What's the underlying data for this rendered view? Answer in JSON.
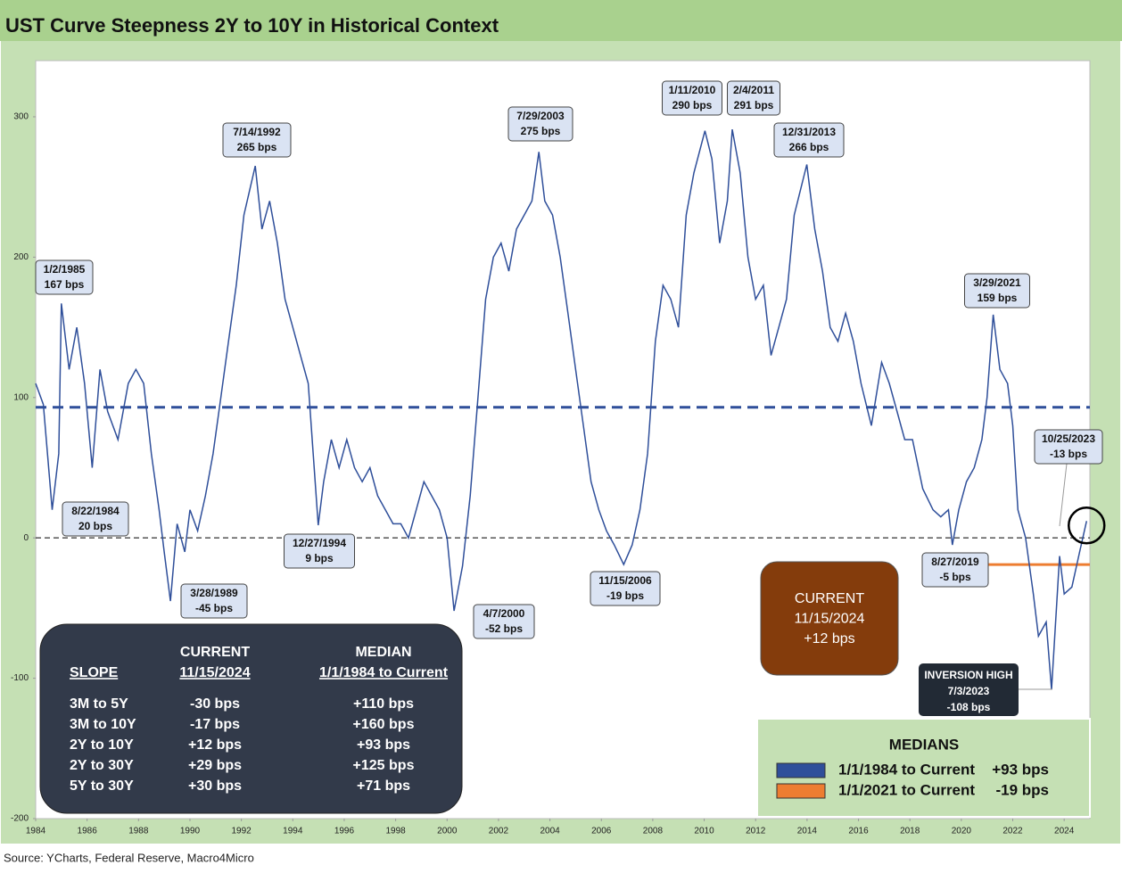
{
  "chart_data": {
    "type": "line",
    "title": "UST Curve Steepness 2Y to 10Y in Historical Context",
    "source": "Source: YCharts, Federal Reserve, Macro4Micro",
    "xlim": [
      1984,
      2025
    ],
    "xticks": [
      1984,
      1986,
      1988,
      1990,
      1992,
      1994,
      1996,
      1998,
      2000,
      2002,
      2004,
      2006,
      2008,
      2010,
      2012,
      2014,
      2016,
      2018,
      2020,
      2022,
      2024
    ],
    "ylim": [
      -200,
      340
    ],
    "yticks": [
      -200,
      -100,
      0,
      100,
      200,
      300
    ],
    "series": [
      {
        "color": "#2f4f9a",
        "x": [
          1984.0,
          1984.3,
          1984.64,
          1984.9,
          1985.0,
          1985.3,
          1985.6,
          1985.9,
          1986.2,
          1986.5,
          1986.8,
          1987.2,
          1987.6,
          1987.9,
          1988.2,
          1988.5,
          1988.8,
          1989.0,
          1989.24,
          1989.5,
          1989.8,
          1990.0,
          1990.3,
          1990.6,
          1990.9,
          1991.2,
          1991.5,
          1991.8,
          1992.1,
          1992.54,
          1992.8,
          1993.1,
          1993.4,
          1993.7,
          1994.0,
          1994.3,
          1994.6,
          1994.99,
          1995.2,
          1995.5,
          1995.8,
          1996.1,
          1996.4,
          1996.7,
          1997.0,
          1997.3,
          1997.6,
          1997.9,
          1998.2,
          1998.5,
          1998.8,
          1999.1,
          1999.4,
          1999.7,
          2000.0,
          2000.27,
          2000.6,
          2000.9,
          2001.2,
          2001.5,
          2001.8,
          2002.1,
          2002.4,
          2002.7,
          2003.0,
          2003.3,
          2003.57,
          2003.8,
          2004.1,
          2004.4,
          2004.7,
          2005.0,
          2005.3,
          2005.6,
          2005.9,
          2006.2,
          2006.5,
          2006.87,
          2007.2,
          2007.5,
          2007.8,
          2008.1,
          2008.4,
          2008.7,
          2009.0,
          2009.3,
          2009.6,
          2010.03,
          2010.3,
          2010.6,
          2010.9,
          2011.09,
          2011.4,
          2011.7,
          2012.0,
          2012.3,
          2012.6,
          2012.9,
          2013.2,
          2013.5,
          2013.99,
          2014.3,
          2014.6,
          2014.9,
          2015.2,
          2015.5,
          2015.8,
          2016.1,
          2016.5,
          2016.9,
          2017.2,
          2017.5,
          2017.8,
          2018.1,
          2018.5,
          2018.9,
          2019.2,
          2019.5,
          2019.65,
          2019.9,
          2020.2,
          2020.5,
          2020.8,
          2021.0,
          2021.24,
          2021.5,
          2021.8,
          2022.0,
          2022.2,
          2022.5,
          2022.8,
          2023.0,
          2023.3,
          2023.51,
          2023.7,
          2023.82,
          2024.0,
          2024.3,
          2024.6,
          2024.87
        ],
        "values": [
          110,
          95,
          20,
          60,
          167,
          120,
          150,
          110,
          50,
          120,
          90,
          70,
          110,
          120,
          110,
          60,
          20,
          -10,
          -45,
          10,
          -10,
          20,
          5,
          30,
          60,
          100,
          140,
          180,
          230,
          265,
          220,
          240,
          210,
          170,
          150,
          130,
          110,
          9,
          40,
          70,
          50,
          70,
          50,
          40,
          50,
          30,
          20,
          10,
          10,
          0,
          20,
          40,
          30,
          20,
          0,
          -52,
          -20,
          30,
          100,
          170,
          200,
          210,
          190,
          220,
          230,
          240,
          275,
          240,
          230,
          200,
          160,
          120,
          80,
          40,
          20,
          5,
          -5,
          -19,
          -5,
          20,
          60,
          140,
          180,
          170,
          150,
          230,
          260,
          290,
          270,
          210,
          240,
          291,
          260,
          200,
          170,
          180,
          130,
          150,
          170,
          230,
          266,
          220,
          190,
          150,
          140,
          160,
          140,
          110,
          80,
          125,
          110,
          90,
          70,
          70,
          35,
          20,
          15,
          20,
          -5,
          20,
          40,
          50,
          70,
          100,
          159,
          120,
          110,
          80,
          20,
          0,
          -40,
          -70,
          -60,
          -108,
          -50,
          -13,
          -40,
          -35,
          -10,
          12
        ]
      }
    ],
    "annotations": [
      {
        "date": "1/2/1985",
        "text": "167 bps"
      },
      {
        "date": "8/22/1984",
        "text": "20 bps"
      },
      {
        "date": "3/28/1989",
        "text": "-45 bps"
      },
      {
        "date": "7/14/1992",
        "text": "265 bps"
      },
      {
        "date": "12/27/1994",
        "text": "9 bps"
      },
      {
        "date": "4/7/2000",
        "text": "-52 bps"
      },
      {
        "date": "7/29/2003",
        "text": "275 bps"
      },
      {
        "date": "11/15/2006",
        "text": "-19 bps"
      },
      {
        "date": "1/11/2010",
        "text": "290 bps"
      },
      {
        "date": "2/4/2011",
        "text": "291 bps"
      },
      {
        "date": "12/31/2013",
        "text": "266 bps"
      },
      {
        "date": "3/29/2021",
        "text": "159 bps"
      },
      {
        "date": "8/27/2019",
        "text": "-5 bps"
      },
      {
        "date": "10/25/2023",
        "text": "-13 bps"
      }
    ],
    "inversion": {
      "title": "INVERSION HIGH",
      "date": "7/3/2023",
      "text": "-108 bps"
    },
    "current": {
      "title": "CURRENT",
      "date": "11/15/2024",
      "text": "+12 bps"
    },
    "medians": {
      "title": "MEDIANS",
      "items": [
        {
          "name": "1/1/1984 to Current",
          "value": 93,
          "label": "+93 bps",
          "color": "#2f4f9a",
          "x": [
            1984,
            2025
          ]
        },
        {
          "name": "1/1/2021 to Current",
          "value": -19,
          "label": "-19 bps",
          "color": "#ed7d31",
          "x": [
            2021,
            2025
          ]
        }
      ]
    },
    "slope_table": {
      "header": [
        [
          "",
          "CURRENT",
          "MEDIAN"
        ],
        [
          "SLOPE",
          "11/15/2024",
          "1/1/1984 to Current"
        ]
      ],
      "rows": [
        [
          "3M to 5Y",
          "-30 bps",
          "+110 bps"
        ],
        [
          "3M to 10Y",
          "-17 bps",
          "+160 bps"
        ],
        [
          "2Y to 10Y",
          "+12 bps",
          "+93 bps"
        ],
        [
          "2Y to 30Y",
          "+29 bps",
          "+125 bps"
        ],
        [
          "5Y to 30Y",
          "+30 bps",
          "+71 bps"
        ]
      ]
    }
  }
}
